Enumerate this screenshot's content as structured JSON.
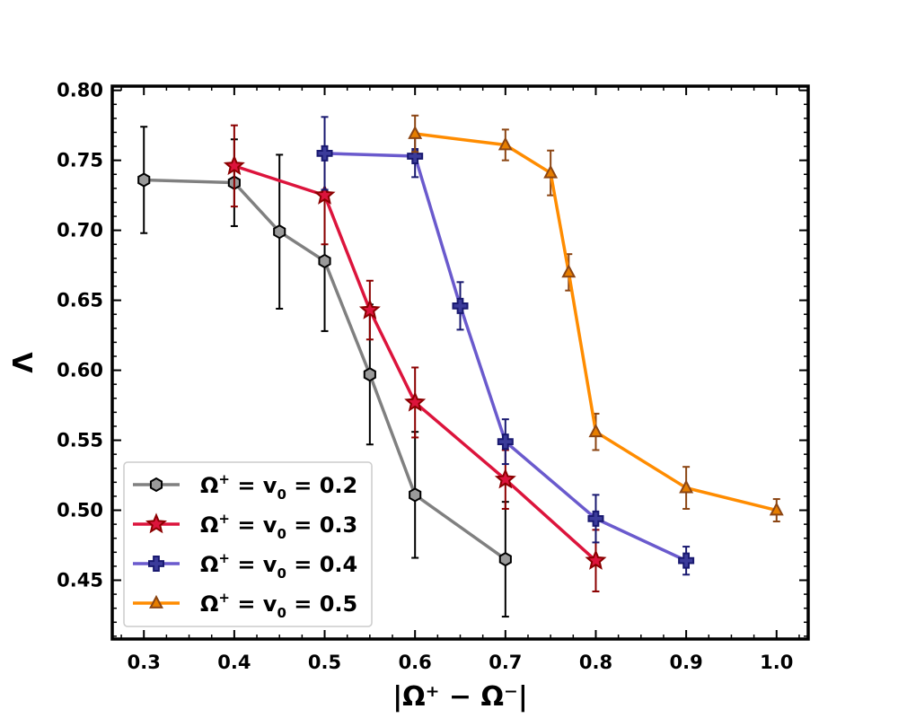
{
  "chart_data": {
    "type": "line",
    "xlabel": "|Ω⁺ − Ω⁻|",
    "ylabel": "Λ",
    "xlim": [
      0.265,
      1.035
    ],
    "ylim": [
      0.408,
      0.803
    ],
    "x_ticks": [
      "0.3",
      "0.4",
      "0.5",
      "0.6",
      "0.7",
      "0.8",
      "0.9",
      "1.0"
    ],
    "y_ticks": [
      "0.45",
      "0.50",
      "0.55",
      "0.60",
      "0.65",
      "0.70",
      "0.75",
      "0.80"
    ],
    "grid": false,
    "legend_position": "lower-left",
    "series": [
      {
        "name": "Ω⁺ = v₀ = 0.2",
        "legend_parts": {
          "omega": "Ω",
          "sup": "+",
          "eq": " = v",
          "sub": "0",
          "val": " = 0.2"
        },
        "color": "#808080",
        "marker": "hexagon",
        "marker_fill": "#9a9a9a",
        "marker_edge": "#000000",
        "err_color": "#000000",
        "x": [
          0.3,
          0.4,
          0.45,
          0.5,
          0.55,
          0.6,
          0.7
        ],
        "y": [
          0.736,
          0.734,
          0.699,
          0.678,
          0.597,
          0.511,
          0.465
        ],
        "err": [
          0.038,
          0.031,
          0.055,
          0.05,
          0.05,
          0.045,
          0.041
        ]
      },
      {
        "name": "Ω⁺ = v₀ = 0.3",
        "legend_parts": {
          "omega": "Ω",
          "sup": "+",
          "eq": " = v",
          "sub": "0",
          "val": " = 0.3"
        },
        "color": "#dc143c",
        "marker": "star",
        "marker_fill": "#dc143c",
        "marker_edge": "#8b0000",
        "err_color": "#8b0000",
        "x": [
          0.4,
          0.5,
          0.55,
          0.6,
          0.7,
          0.8
        ],
        "y": [
          0.746,
          0.725,
          0.643,
          0.577,
          0.522,
          0.464
        ],
        "err": [
          0.029,
          0.035,
          0.021,
          0.025,
          0.021,
          0.022
        ]
      },
      {
        "name": "Ω⁺ = v₀ = 0.4",
        "legend_parts": {
          "omega": "Ω",
          "sup": "+",
          "eq": " = v",
          "sub": "0",
          "val": " = 0.4"
        },
        "color": "#6a5acd",
        "marker": "plus",
        "marker_fill": "#3b3b9a",
        "marker_edge": "#191970",
        "err_color": "#191970",
        "x": [
          0.5,
          0.6,
          0.65,
          0.7,
          0.8,
          0.9
        ],
        "y": [
          0.755,
          0.753,
          0.646,
          0.549,
          0.494,
          0.464
        ],
        "err": [
          0.026,
          0.015,
          0.017,
          0.016,
          0.017,
          0.01
        ]
      },
      {
        "name": "Ω⁺ = v₀ = 0.5",
        "legend_parts": {
          "omega": "Ω",
          "sup": "+",
          "eq": " = v",
          "sub": "0",
          "val": " = 0.5"
        },
        "color": "#ff8c00",
        "marker": "triangle",
        "marker_fill": "#e67e00",
        "marker_edge": "#8b4513",
        "err_color": "#8b4513",
        "x": [
          0.6,
          0.7,
          0.75,
          0.77,
          0.8,
          0.9,
          1.0
        ],
        "y": [
          0.769,
          0.761,
          0.741,
          0.67,
          0.556,
          0.516,
          0.5
        ],
        "err": [
          0.013,
          0.011,
          0.016,
          0.013,
          0.013,
          0.015,
          0.008
        ]
      }
    ]
  }
}
